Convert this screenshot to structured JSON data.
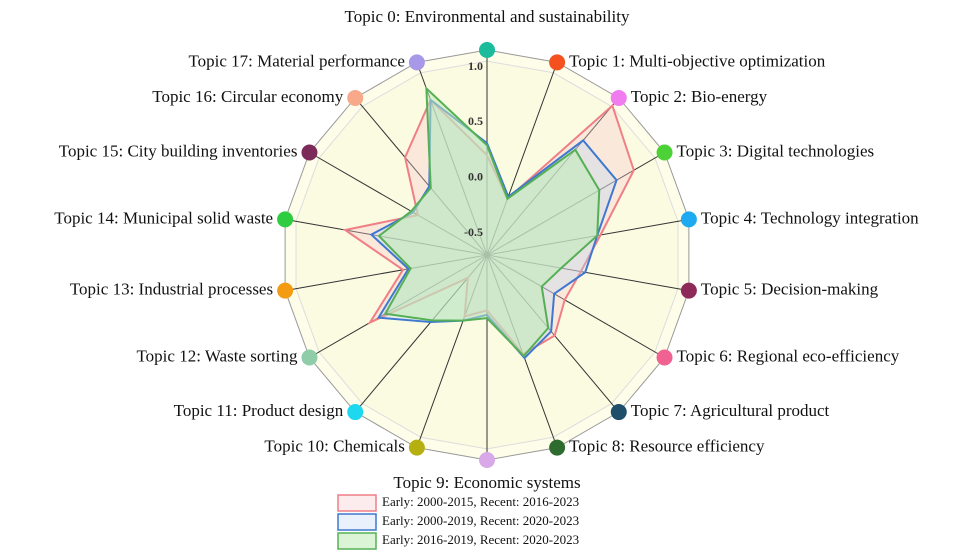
{
  "chart_data": {
    "type": "radar",
    "categories": [
      "Topic 0: Environmental and sustainability",
      "Topic 1: Multi-objective optimization",
      "Topic 2: Bio-energy",
      "Topic 3: Digital technologies",
      "Topic 4: Technology integration",
      "Topic 5: Decision-making",
      "Topic 6: Regional eco-efficiency",
      "Topic 7: Agricultural product",
      "Topic 8: Resource efficiency",
      "Topic 9: Economic systems",
      "Topic 10: Chemicals",
      "Topic 11: Product design",
      "Topic 12: Waste sorting",
      "Topic 13: Industrial processes",
      "Topic 14: Municipal solid waste",
      "Topic 15: City building inventories",
      "Topic 16: Circular economy",
      "Topic 17: Material performance"
    ],
    "category_colors": [
      "#1abc9c",
      "#f4511e",
      "#f07cf0",
      "#4cd137",
      "#1eaaf1",
      "#8e2a5a",
      "#f06292",
      "#1f4e6b",
      "#2e6b2e",
      "#d8a8e8",
      "#b5b010",
      "#1ed8f0",
      "#8fcca8",
      "#f39c12",
      "#2ecc40",
      "#7b2a5a",
      "#f7a98a",
      "#a899e8"
    ],
    "ylim": [
      -0.75,
      1.1
    ],
    "yticks": [
      -0.5,
      {
        "value": 0,
        "label": "0.0"
      },
      0.5,
      {
        "value": 1,
        "label": "1.0"
      }
    ],
    "series": [
      {
        "name": "Early: 2000-2015, Recent: 2016-2023",
        "color": "#ef7f85",
        "fill": "rgba(250,200,205,0.35)",
        "values": [
          0.15,
          -0.21,
          1.01,
          0.78,
          0.29,
          0.11,
          0.06,
          0.2,
          0.2,
          -0.25,
          -0.16,
          -0.48,
          0.47,
          0.02,
          0.55,
          -0.03,
          0.4,
          0.74
        ]
      },
      {
        "name": "Early: 2000-2019, Recent: 2020-2023",
        "color": "#3f78d0",
        "fill": "rgba(190,215,245,0.35)",
        "values": [
          0.26,
          -0.19,
          0.6,
          0.6,
          0.26,
          0.15,
          -0.05,
          0.15,
          0.24,
          -0.21,
          -0.12,
          0.04,
          0.38,
          -0.03,
          0.31,
          0.02,
          0.06,
          0.74
        ]
      },
      {
        "name": "Early: 2016-2019, Recent: 2020-2023",
        "color": "#55b055",
        "fill": "rgba(190,235,180,0.55)",
        "values": [
          0.24,
          -0.21,
          0.49,
          0.42,
          0.26,
          -0.07,
          -0.18,
          0.11,
          0.22,
          -0.18,
          -0.12,
          0.02,
          0.31,
          -0.05,
          0.24,
          0.04,
          0.04,
          0.85
        ]
      }
    ]
  }
}
